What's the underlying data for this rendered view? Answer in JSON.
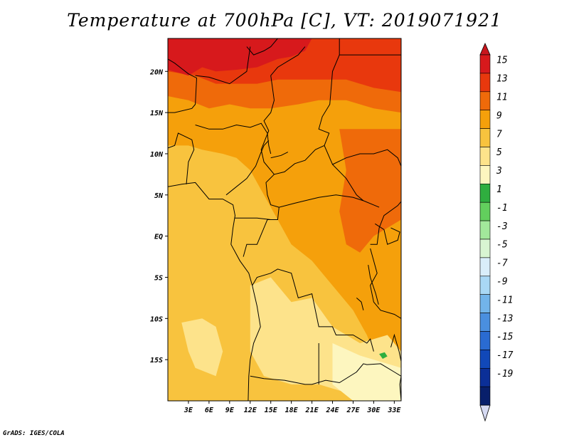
{
  "title": "Temperature at 700hPa [C], VT: 2019071921",
  "credit": "GrADS: IGES/COLA",
  "map": {
    "lon_range": [
      0,
      34
    ],
    "lat_range": [
      -20,
      24
    ],
    "lon_ticks": [
      {
        "lon": 3,
        "label": "3E"
      },
      {
        "lon": 6,
        "label": "6E"
      },
      {
        "lon": 9,
        "label": "9E"
      },
      {
        "lon": 12,
        "label": "12E"
      },
      {
        "lon": 15,
        "label": "15E"
      },
      {
        "lon": 18,
        "label": "18E"
      },
      {
        "lon": 21,
        "label": "21E"
      },
      {
        "lon": 24,
        "label": "24E"
      },
      {
        "lon": 27,
        "label": "27E"
      },
      {
        "lon": 30,
        "label": "30E"
      },
      {
        "lon": 33,
        "label": "33E"
      }
    ],
    "lat_ticks": [
      {
        "lat": 20,
        "label": "20N"
      },
      {
        "lat": 15,
        "label": "15N"
      },
      {
        "lat": 10,
        "label": "10N"
      },
      {
        "lat": 5,
        "label": "5N"
      },
      {
        "lat": 0,
        "label": "EQ"
      },
      {
        "lat": -5,
        "label": "5S"
      },
      {
        "lat": -10,
        "label": "10S"
      },
      {
        "lat": -15,
        "label": "15S"
      }
    ]
  },
  "colorbar": {
    "labels": [
      "15",
      "13",
      "11",
      "9",
      "7",
      "5",
      "3",
      "1",
      "-1",
      "-3",
      "-5",
      "-7",
      "-9",
      "-11",
      "-13",
      "-15",
      "-17",
      "-19"
    ],
    "colors": [
      "#d7191c",
      "#e8380d",
      "#ef6a0a",
      "#f5a00b",
      "#f8c33e",
      "#fde38b",
      "#fdf6bf",
      "#2fae3f",
      "#62cf5d",
      "#a2e89b",
      "#d8f5d2",
      "#d9eefa",
      "#a9d8f5",
      "#72b4ea",
      "#4a8fdf",
      "#2a6bd1",
      "#1148b8",
      "#0b2f97",
      "#081f6b"
    ],
    "top_arrow_color": "#c8161d",
    "bottom_arrow_color": "#d6daf2"
  },
  "field_colors": {
    "t15": "#d7191c",
    "t13": "#e8380d",
    "t11": "#ef6a0a",
    "t9": "#f5a00b",
    "t7": "#f8c33e",
    "t5": "#fde38b",
    "t3": "#fdf6bf",
    "t1": "#2fae3f",
    "ocean": "#f8b93c"
  }
}
